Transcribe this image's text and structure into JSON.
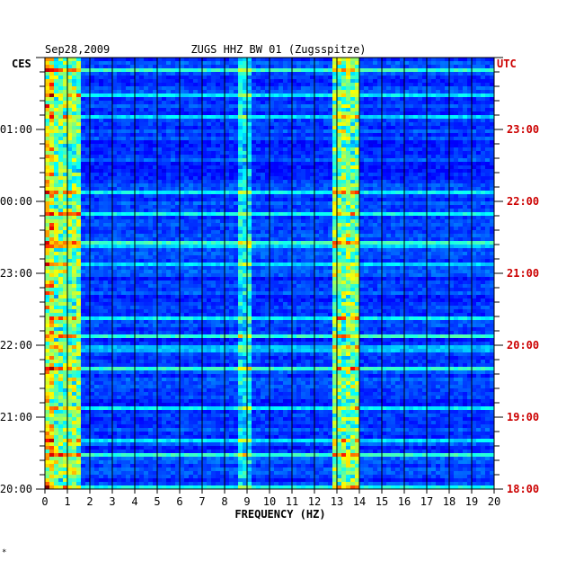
{
  "chart_data": {
    "type": "heatmap",
    "date": "Sep28,2009",
    "title": "ZUGS HHZ BW 01 (Zugsspitze)",
    "left_axis_label": "CES",
    "right_axis_label": "UTC",
    "xlabel": "FREQUENCY (HZ)",
    "xlim": [
      0,
      20
    ],
    "x_ticks": [
      "0",
      "1",
      "2",
      "3",
      "4",
      "5",
      "6",
      "7",
      "8",
      "9",
      "10",
      "11",
      "12",
      "13",
      "14",
      "15",
      "16",
      "17",
      "18",
      "19",
      "20"
    ],
    "left_time_ticks": [
      "01:00",
      "00:00",
      "23:00",
      "22:00",
      "21:00",
      "20:00"
    ],
    "right_time_ticks": [
      "23:00",
      "22:00",
      "21:00",
      "20:00",
      "19:00",
      "18:00"
    ],
    "time_range_utc": [
      "18:00",
      "24:00"
    ],
    "colormap": "jet",
    "colors": {
      "right_axis": "#cc0000",
      "left_axis": "#000000",
      "background": "#000099"
    },
    "footnote": "*",
    "energy_bands_hz": [
      {
        "range": [
          0,
          1.5
        ],
        "level": "high"
      },
      {
        "range": [
          8.7,
          9.2
        ],
        "level": "medium"
      },
      {
        "range": [
          12.8,
          14.0
        ],
        "level": "high"
      }
    ]
  }
}
